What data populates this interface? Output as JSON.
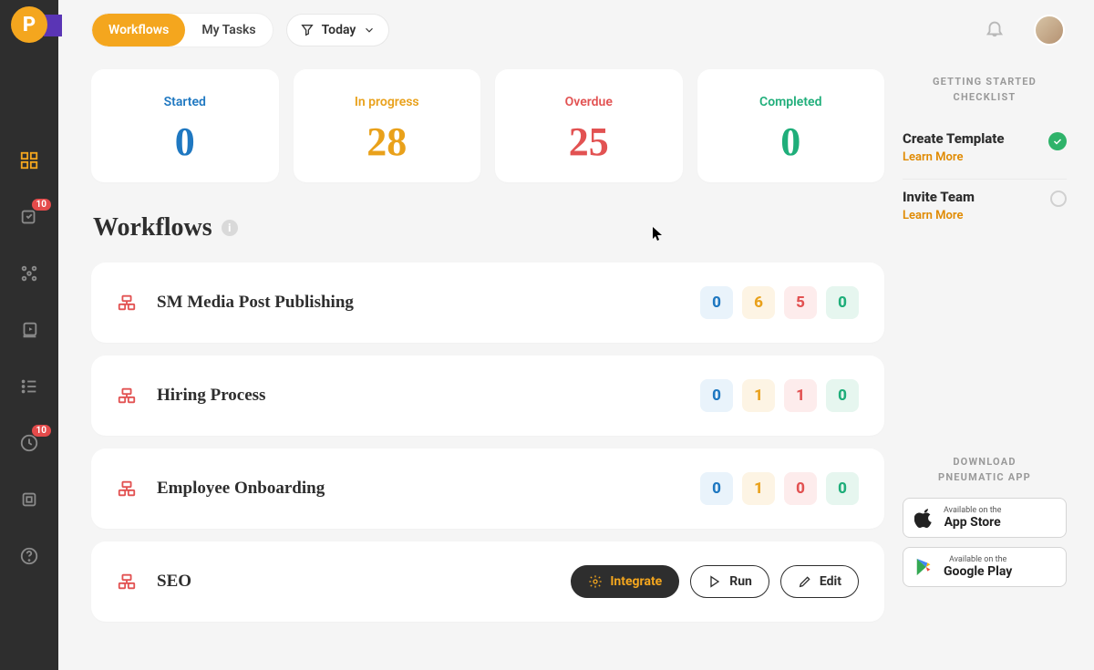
{
  "logo_letter": "P",
  "nav": {
    "badge1": "10",
    "badge2": "10"
  },
  "topbar": {
    "workflows": "Workflows",
    "my_tasks": "My Tasks",
    "today": "Today"
  },
  "stats": [
    {
      "label": "Started",
      "value": "0",
      "label_color": "#1f78c1",
      "value_color": "#1f78c1"
    },
    {
      "label": "In progress",
      "value": "28",
      "label_color": "#e9a11b",
      "value_color": "#e9a11b"
    },
    {
      "label": "Overdue",
      "value": "25",
      "label_color": "#e25252",
      "value_color": "#e25252"
    },
    {
      "label": "Completed",
      "value": "0",
      "label_color": "#1fae7a",
      "value_color": "#1fae7a"
    }
  ],
  "section_title": "Workflows",
  "count_styles": [
    {
      "bg": "#e9f3fb",
      "fg": "#1f78c1"
    },
    {
      "bg": "#fdf4e4",
      "fg": "#e9a11b"
    },
    {
      "bg": "#fdecec",
      "fg": "#e25252"
    },
    {
      "bg": "#e6f6ef",
      "fg": "#1fae7a"
    }
  ],
  "workflows": [
    {
      "name": "SM Media Post Publishing",
      "counts": [
        "0",
        "6",
        "5",
        "0"
      ],
      "mode": "counts"
    },
    {
      "name": "Hiring Process",
      "counts": [
        "0",
        "1",
        "1",
        "0"
      ],
      "mode": "counts"
    },
    {
      "name": "Employee Onboarding",
      "counts": [
        "0",
        "1",
        "0",
        "0"
      ],
      "mode": "counts"
    },
    {
      "name": "SEO",
      "counts": [],
      "mode": "actions"
    }
  ],
  "actions": {
    "integrate": "Integrate",
    "run": "Run",
    "edit": "Edit"
  },
  "checklist": {
    "title_l1": "GETTING STARTED",
    "title_l2": "CHECKLIST",
    "learn_more": "Learn More",
    "items": [
      {
        "title": "Create Template",
        "done": true
      },
      {
        "title": "Invite Team",
        "done": false
      }
    ]
  },
  "download": {
    "title_l1": "DOWNLOAD",
    "title_l2": "PNEUMATIC APP",
    "appstore_small": "Available on the",
    "appstore_big": "App Store",
    "googleplay_small": "Available on the",
    "googleplay_big": "Google Play"
  }
}
